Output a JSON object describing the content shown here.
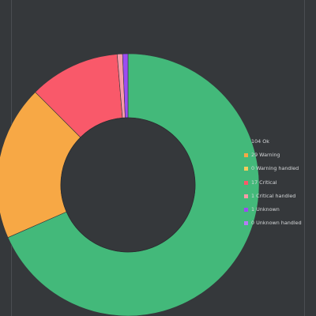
{
  "chart_data": {
    "type": "pie",
    "donut": true,
    "start_angle_deg": 0,
    "legend_position": "right",
    "slices": [
      {
        "label": "104 Ok",
        "value": 104,
        "color": "#43b97a"
      },
      {
        "label": "29 Warning",
        "value": 29,
        "color": "#f7a845"
      },
      {
        "label": "0 Warning handled",
        "value": 0,
        "color": "#f3cc5c"
      },
      {
        "label": "17 Critical",
        "value": 17,
        "color": "#f9596a"
      },
      {
        "label": "1 Critical handled",
        "value": 1,
        "color": "#f99aa8"
      },
      {
        "label": "1 Unknown",
        "value": 1,
        "color": "#9b4cf2"
      },
      {
        "label": "0 Unknown handled",
        "value": 0,
        "color": "#b67cf5"
      }
    ]
  }
}
